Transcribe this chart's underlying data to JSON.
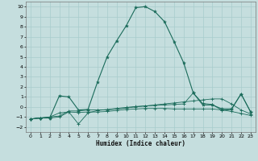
{
  "xlabel": "Humidex (Indice chaleur)",
  "xlim": [
    -0.5,
    23.5
  ],
  "ylim": [
    -2.5,
    10.5
  ],
  "yticks": [
    -2,
    -1,
    0,
    1,
    2,
    3,
    4,
    5,
    6,
    7,
    8,
    9,
    10
  ],
  "xticks": [
    0,
    1,
    2,
    3,
    4,
    5,
    6,
    7,
    8,
    9,
    10,
    11,
    12,
    13,
    14,
    15,
    16,
    17,
    18,
    19,
    20,
    21,
    22,
    23
  ],
  "background_color": "#c5dede",
  "grid_color": "#a8cccc",
  "line_color": "#1a6b5a",
  "series_main": {
    "x": [
      0,
      1,
      2,
      3,
      4,
      5,
      6,
      7,
      8,
      9,
      10,
      11,
      12,
      13,
      14,
      15,
      16,
      17,
      18,
      19,
      20,
      21,
      22,
      23
    ],
    "y": [
      -1.2,
      -1.1,
      -1.1,
      1.1,
      1.0,
      -0.3,
      -0.25,
      2.5,
      5.0,
      6.6,
      8.1,
      9.9,
      10.0,
      9.5,
      8.5,
      6.5,
      4.4,
      1.4,
      0.2,
      0.2,
      -0.2,
      -0.2,
      1.3,
      -0.5
    ]
  },
  "series2": {
    "x": [
      0,
      1,
      2,
      3,
      4,
      5,
      6,
      7,
      8,
      9,
      10,
      11,
      12,
      13,
      14,
      15,
      16,
      17,
      18,
      19,
      20,
      21,
      22,
      23
    ],
    "y": [
      -1.2,
      -1.1,
      -1.0,
      -0.6,
      -0.5,
      -1.7,
      -0.6,
      -0.35,
      -0.25,
      -0.15,
      -0.05,
      0.05,
      0.1,
      0.15,
      0.2,
      0.25,
      0.3,
      1.4,
      0.35,
      0.25,
      -0.35,
      -0.25,
      1.3,
      -0.5
    ]
  },
  "series3": {
    "x": [
      0,
      1,
      2,
      3,
      4,
      5,
      6,
      7,
      8,
      9,
      10,
      11,
      12,
      13,
      14,
      15,
      16,
      17,
      18,
      19,
      20,
      21,
      22,
      23
    ],
    "y": [
      -1.2,
      -1.1,
      -1.0,
      -0.9,
      -0.4,
      -0.4,
      -0.3,
      -0.3,
      -0.3,
      -0.2,
      -0.1,
      0.0,
      0.1,
      0.2,
      0.3,
      0.4,
      0.5,
      0.6,
      0.7,
      0.8,
      0.8,
      0.3,
      -0.3,
      -0.7
    ]
  },
  "series4": {
    "x": [
      0,
      1,
      2,
      3,
      4,
      5,
      6,
      7,
      8,
      9,
      10,
      11,
      12,
      13,
      14,
      15,
      16,
      17,
      18,
      19,
      20,
      21,
      22,
      23
    ],
    "y": [
      -1.2,
      -1.1,
      -1.1,
      -1.0,
      -0.5,
      -0.55,
      -0.5,
      -0.5,
      -0.45,
      -0.35,
      -0.25,
      -0.2,
      -0.15,
      -0.15,
      -0.15,
      -0.2,
      -0.2,
      -0.2,
      -0.2,
      -0.2,
      -0.3,
      -0.45,
      -0.65,
      -0.85
    ]
  }
}
